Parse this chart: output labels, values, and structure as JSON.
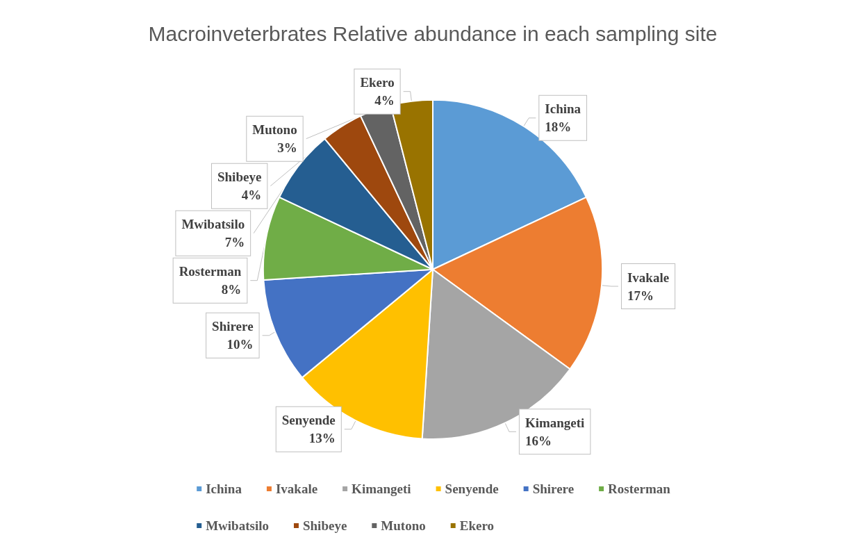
{
  "chart_data": {
    "type": "pie",
    "title": "Macroinveterbrates Relative abundance in each sampling site",
    "categories": [
      "Ichina",
      "Ivakale",
      "Kimangeti",
      "Senyende",
      "Shirere",
      "Rosterman",
      "Mwibatsilo",
      "Shibeye",
      "Mutono",
      "Ekero"
    ],
    "values": [
      18,
      17,
      16,
      13,
      10,
      8,
      7,
      4,
      3,
      4
    ],
    "colors": [
      "#5b9bd5",
      "#ed7d31",
      "#a5a5a5",
      "#ffc000",
      "#4472c4",
      "#70ad47",
      "#255e91",
      "#9e480e",
      "#636363",
      "#997300"
    ],
    "value_labels": [
      "18%",
      "17%",
      "16%",
      "13%",
      "10%",
      "8%",
      "7%",
      "4%",
      "3%",
      "4%"
    ],
    "legend": "bottom"
  }
}
